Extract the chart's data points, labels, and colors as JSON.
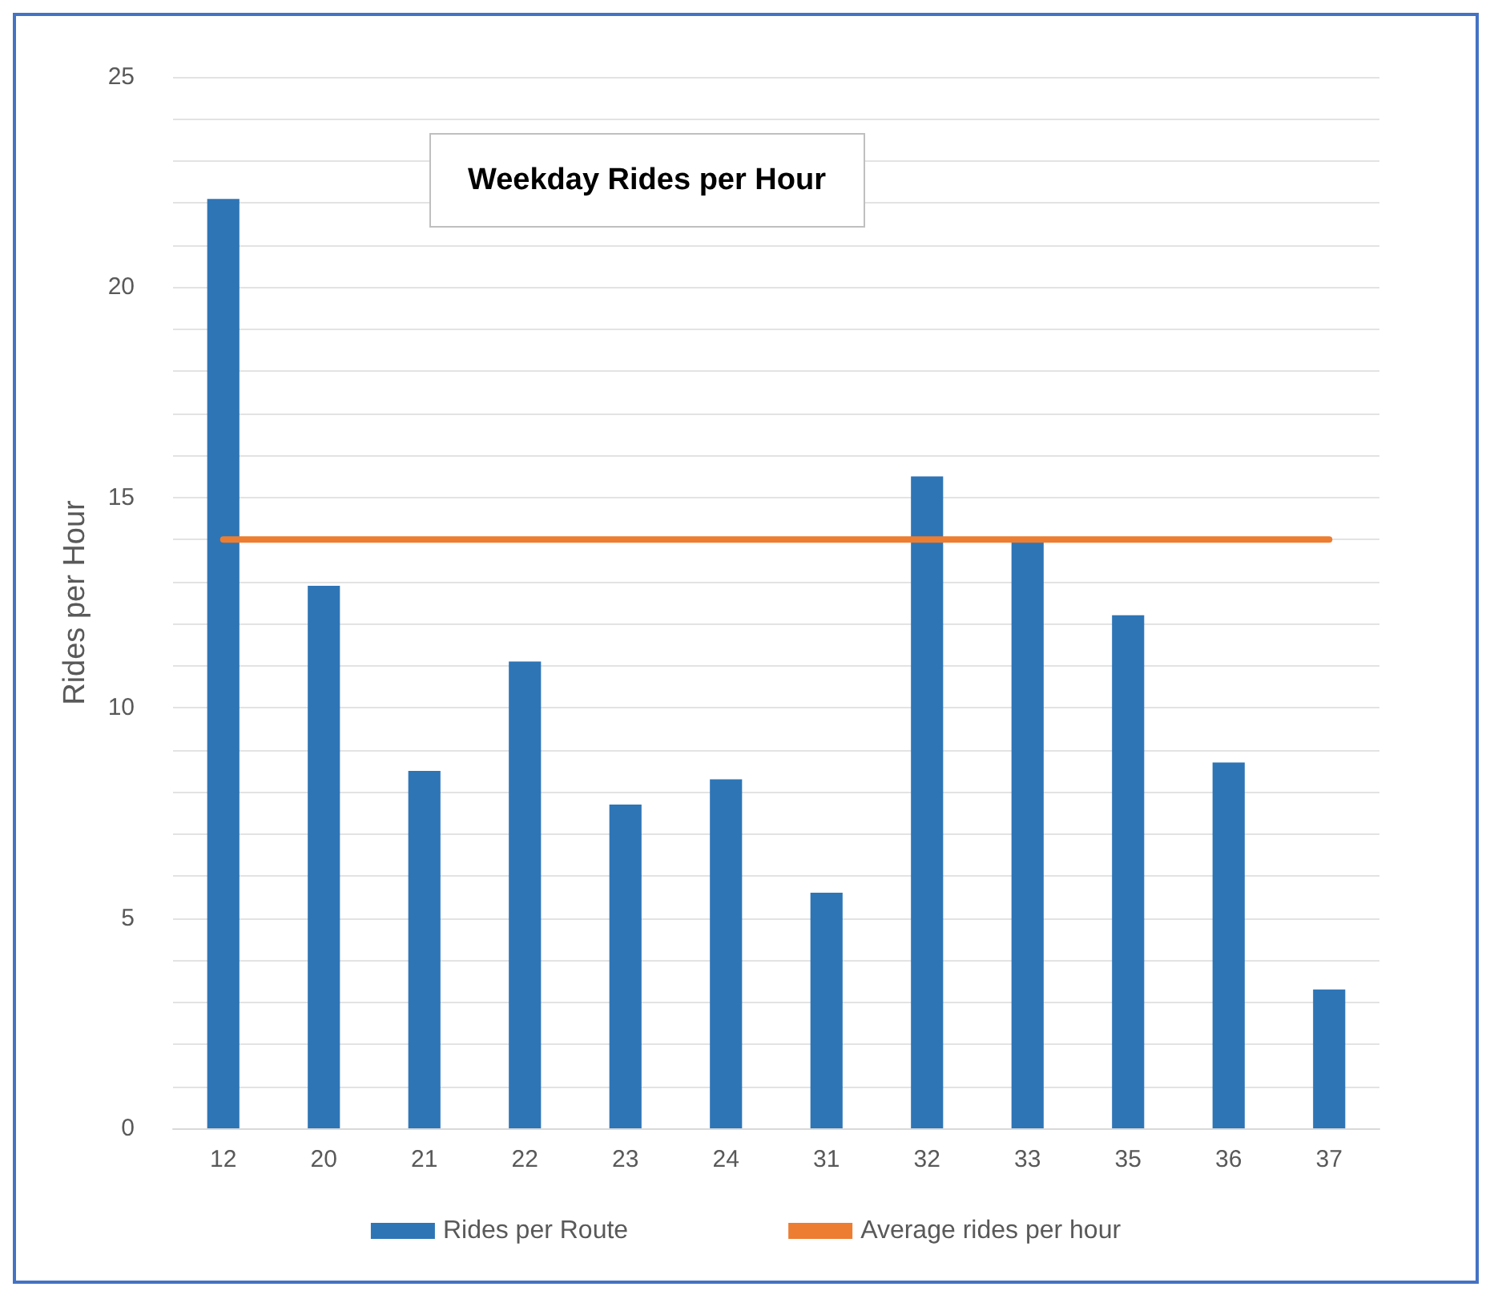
{
  "chart_data": {
    "type": "bar",
    "title": "Weekday Rides per Hour",
    "ylabel": "Rides per Hour",
    "categories": [
      "12",
      "20",
      "21",
      "22",
      "23",
      "24",
      "31",
      "32",
      "33",
      "35",
      "36",
      "37"
    ],
    "series": [
      {
        "name": "Rides per Route",
        "color": "#2e75b6",
        "values": [
          22.1,
          12.9,
          8.5,
          11.1,
          7.7,
          8.3,
          5.6,
          15.5,
          14.0,
          12.2,
          8.7,
          3.3
        ]
      },
      {
        "name": "Average rides per hour",
        "type": "line",
        "color": "#ed7d31",
        "values": [
          14.0,
          14.0,
          14.0,
          14.0,
          14.0,
          14.0,
          14.0,
          14.0,
          14.0,
          14.0,
          14.0,
          14.0
        ]
      }
    ],
    "ylim": [
      0,
      25
    ],
    "yticks": [
      0,
      {
        "value": 1,
        "label": null
      },
      {
        "value": 2,
        "label": null
      },
      {
        "value": 3,
        "label": null
      },
      {
        "value": 4,
        "label": null
      },
      5,
      {
        "value": 6,
        "label": null
      },
      {
        "value": 7,
        "label": null
      },
      {
        "value": 8,
        "label": null
      },
      {
        "value": 9,
        "label": null
      },
      10,
      {
        "value": 11,
        "label": null
      },
      {
        "value": 12,
        "label": null
      },
      {
        "value": 13,
        "label": null
      },
      {
        "value": 14,
        "label": null
      },
      15,
      {
        "value": 16,
        "label": null
      },
      {
        "value": 17,
        "label": null
      },
      {
        "value": 18,
        "label": null
      },
      {
        "value": 19,
        "label": null
      },
      20,
      {
        "value": 21,
        "label": null
      },
      {
        "value": 22,
        "label": null
      },
      {
        "value": 23,
        "label": null
      },
      {
        "value": 24,
        "label": null
      },
      25
    ],
    "grid": "y",
    "legend": "bottom",
    "marker": "none"
  }
}
